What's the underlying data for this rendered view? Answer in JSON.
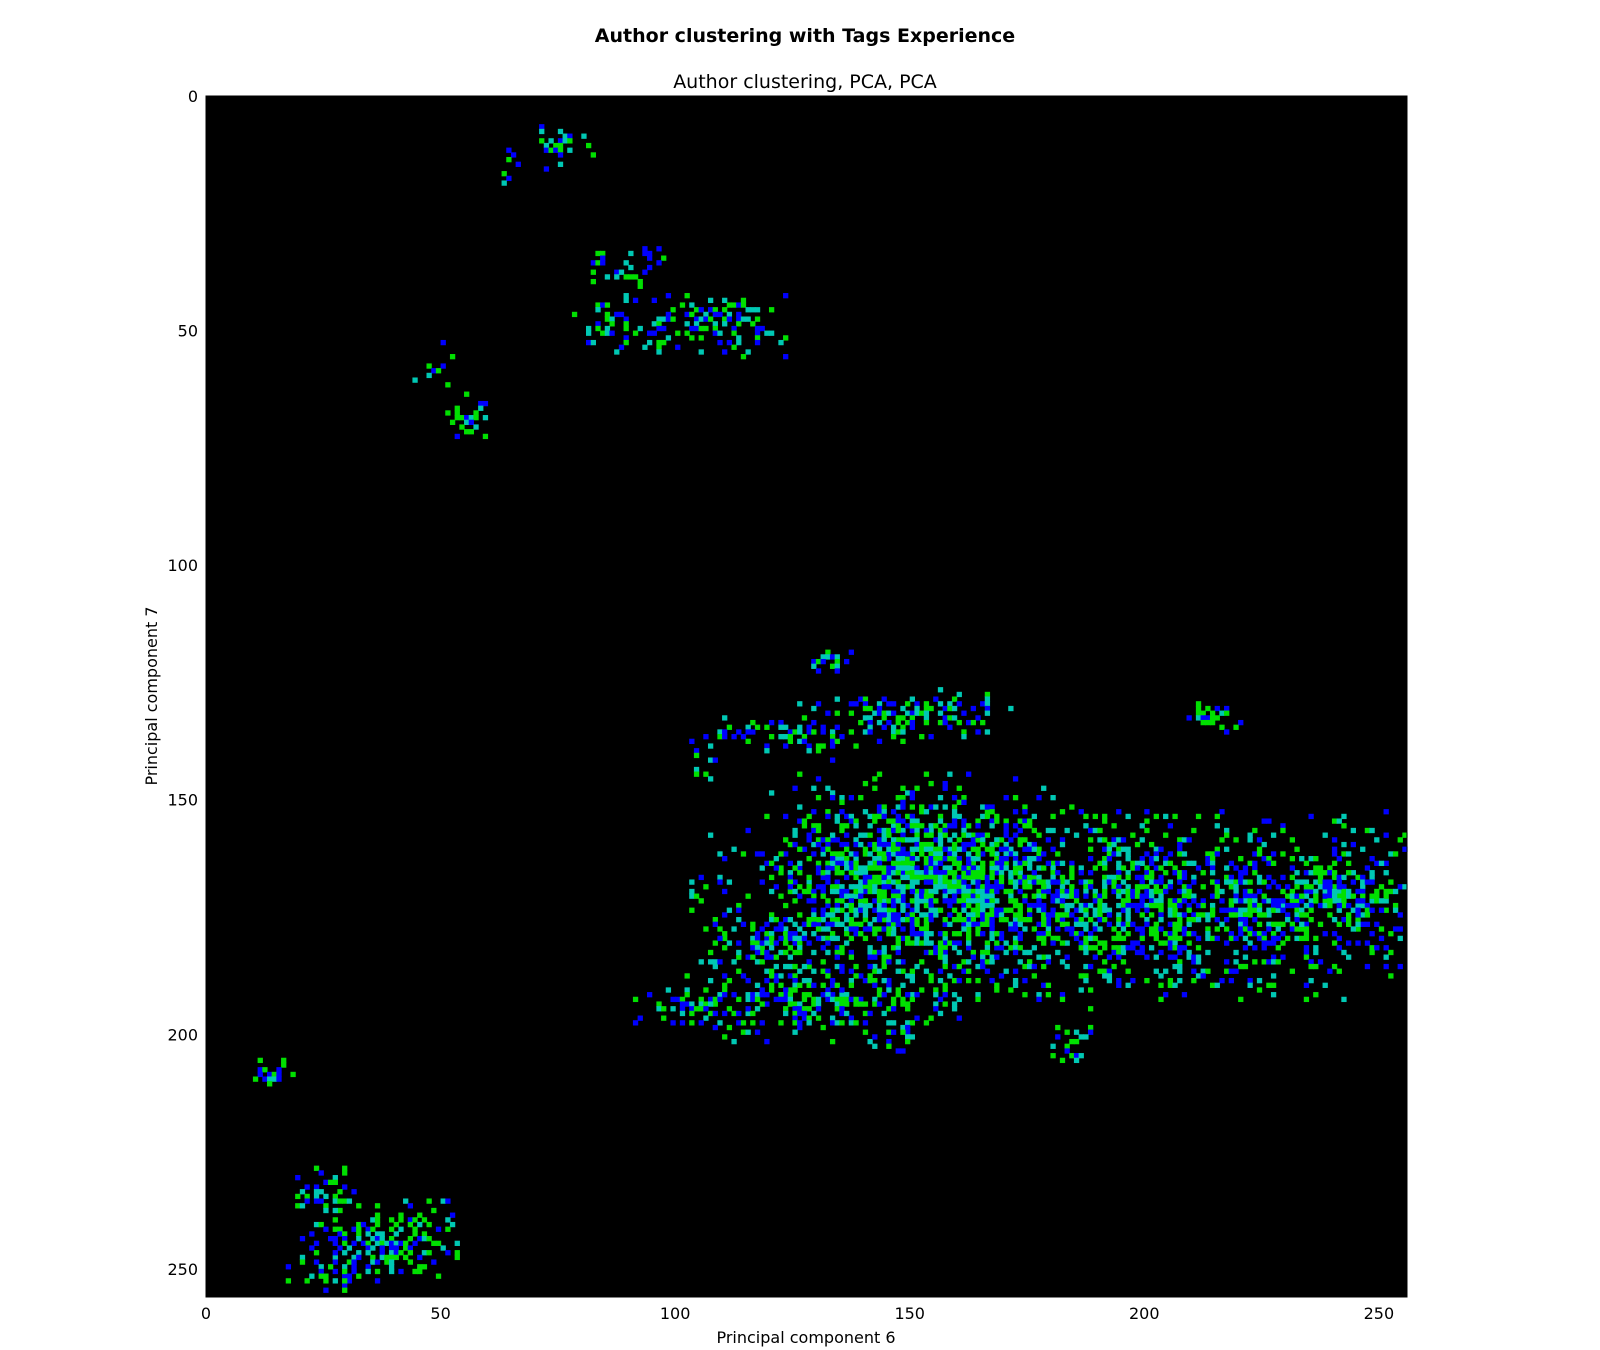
{
  "chart_data": {
    "type": "heatmap",
    "suptitle": "Author clustering with Tags Experience",
    "title": "Author clustering, PCA, PCA",
    "xlabel": "Principal component 6",
    "ylabel": "Principal component 7",
    "xlim": [
      0,
      256
    ],
    "ylim": [
      256,
      0
    ],
    "xticks": [
      0,
      50,
      100,
      150,
      200,
      250
    ],
    "yticks": [
      0,
      50,
      100,
      150,
      200,
      250
    ],
    "background": "#000000",
    "colormap": [
      "#0000ff",
      "#00e000",
      "#00c8b4"
    ],
    "clusters": [
      {
        "cx": 75,
        "cy": 10,
        "rx": 5,
        "ry": 3,
        "density": 0.55
      },
      {
        "cx": 63,
        "cy": 15,
        "rx": 3,
        "ry": 3,
        "density": 0.2
      },
      {
        "cx": 88,
        "cy": 36,
        "rx": 7,
        "ry": 3,
        "density": 0.4
      },
      {
        "cx": 100,
        "cy": 48,
        "rx": 17,
        "ry": 5,
        "density": 0.55,
        "hole": {
          "cx": 92,
          "cy": 46,
          "r": 3
        }
      },
      {
        "cx": 49,
        "cy": 57,
        "rx": 3,
        "ry": 3,
        "density": 0.3
      },
      {
        "cx": 55,
        "cy": 68,
        "rx": 4,
        "ry": 3,
        "density": 0.55
      },
      {
        "cx": 133,
        "cy": 120,
        "rx": 4,
        "ry": 2,
        "density": 0.5
      },
      {
        "cx": 124,
        "cy": 136,
        "rx": 12,
        "ry": 3,
        "density": 0.45
      },
      {
        "cx": 150,
        "cy": 132,
        "rx": 17,
        "ry": 4,
        "density": 0.45
      },
      {
        "cx": 214,
        "cy": 132,
        "rx": 4,
        "ry": 2,
        "density": 0.5
      },
      {
        "cx": 105,
        "cy": 141,
        "rx": 2,
        "ry": 3,
        "density": 0.4
      },
      {
        "cx": 190,
        "cy": 172,
        "rx": 62,
        "ry": 14,
        "density": 0.55,
        "hole": {
          "cx": 158,
          "cy": 172,
          "r": 4
        }
      },
      {
        "cx": 152,
        "cy": 165,
        "rx": 23,
        "ry": 15,
        "density": 0.7
      },
      {
        "cx": 240,
        "cy": 170,
        "rx": 14,
        "ry": 5,
        "density": 0.5
      },
      {
        "cx": 120,
        "cy": 179,
        "rx": 10,
        "ry": 4,
        "density": 0.5
      },
      {
        "cx": 130,
        "cy": 192,
        "rx": 22,
        "ry": 6,
        "density": 0.5
      },
      {
        "cx": 105,
        "cy": 194,
        "rx": 10,
        "ry": 3,
        "density": 0.45
      },
      {
        "cx": 183,
        "cy": 200,
        "rx": 3,
        "ry": 4,
        "density": 0.45
      },
      {
        "cx": 145,
        "cy": 200,
        "rx": 5,
        "ry": 3,
        "density": 0.4
      },
      {
        "cx": 14,
        "cy": 207,
        "rx": 3,
        "ry": 2,
        "density": 0.5
      },
      {
        "cx": 25,
        "cy": 233,
        "rx": 5,
        "ry": 4,
        "density": 0.5
      },
      {
        "cx": 36,
        "cy": 244,
        "rx": 12,
        "ry": 6,
        "density": 0.6
      },
      {
        "cx": 24,
        "cy": 250,
        "rx": 6,
        "ry": 3,
        "density": 0.3
      }
    ]
  }
}
